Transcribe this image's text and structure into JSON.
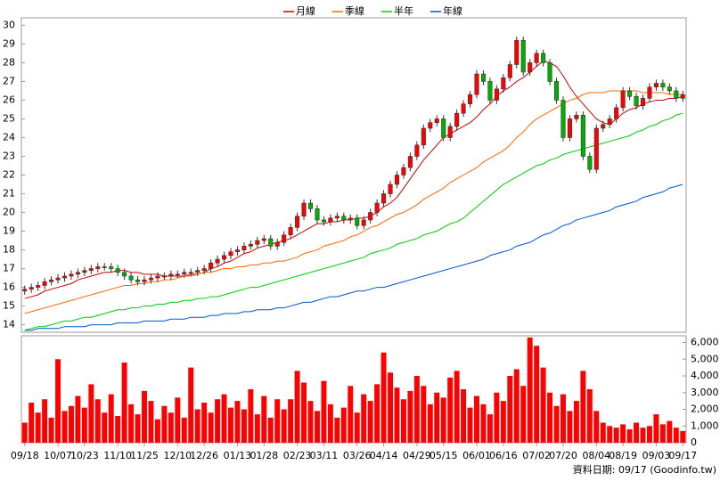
{
  "chart_data": {
    "type": "candlestick",
    "categories": [
      "09/18",
      null,
      null,
      null,
      null,
      "10/07",
      null,
      null,
      null,
      "10/23",
      null,
      null,
      null,
      null,
      "11/10",
      null,
      null,
      null,
      "11/25",
      null,
      null,
      null,
      null,
      "12/10",
      null,
      null,
      null,
      "12/26",
      null,
      null,
      null,
      null,
      "01/13",
      null,
      null,
      null,
      "01/28",
      null,
      null,
      null,
      null,
      "02/23",
      null,
      null,
      null,
      "03/11",
      null,
      null,
      null,
      null,
      "03/26",
      null,
      null,
      null,
      "04/14",
      null,
      null,
      null,
      null,
      "04/29",
      null,
      null,
      null,
      "05/15",
      null,
      null,
      null,
      null,
      "06/01",
      null,
      null,
      null,
      "06/16",
      null,
      null,
      null,
      null,
      "07/02",
      null,
      null,
      null,
      "07/20",
      null,
      null,
      null,
      null,
      "08/04",
      null,
      null,
      null,
      "08/19",
      null,
      null,
      null,
      null,
      "09/03",
      null,
      null,
      null,
      "09/17"
    ],
    "open": [
      15.8,
      15.9,
      16.0,
      16.1,
      16.3,
      16.4,
      16.5,
      16.6,
      16.7,
      16.8,
      16.9,
      17.0,
      17.1,
      17.1,
      17.0,
      16.8,
      16.6,
      16.4,
      16.3,
      16.4,
      16.5,
      16.6,
      16.6,
      16.7,
      16.7,
      16.8,
      16.8,
      16.9,
      17.0,
      17.3,
      17.5,
      17.7,
      17.9,
      18.0,
      18.2,
      18.3,
      18.5,
      18.6,
      18.2,
      18.4,
      18.8,
      19.2,
      19.8,
      20.5,
      20.2,
      19.6,
      19.5,
      19.7,
      19.8,
      19.6,
      19.7,
      19.3,
      19.6,
      20.0,
      20.5,
      21.0,
      21.5,
      22.0,
      22.4,
      23.0,
      23.6,
      24.5,
      24.8,
      25.0,
      24.0,
      24.6,
      25.3,
      25.8,
      26.3,
      27.4,
      27.0,
      26.0,
      26.6,
      27.2,
      27.9,
      29.2,
      27.5,
      28.0,
      28.5,
      28.0,
      27.0,
      26.0,
      24.0,
      25.0,
      25.2,
      23.0,
      22.3,
      24.5,
      24.7,
      25.0,
      25.6,
      26.5,
      26.2,
      25.7,
      26.1,
      26.7,
      26.9,
      26.7,
      26.5,
      26.1
    ],
    "high": [
      16.1,
      16.2,
      16.3,
      16.5,
      16.6,
      16.7,
      16.8,
      16.9,
      17.0,
      17.1,
      17.2,
      17.3,
      17.3,
      17.3,
      17.2,
      17.0,
      16.8,
      16.6,
      16.6,
      16.7,
      16.8,
      16.8,
      16.9,
      16.9,
      17.0,
      17.0,
      17.1,
      17.2,
      17.5,
      17.7,
      17.9,
      18.1,
      18.2,
      18.4,
      18.5,
      18.7,
      18.8,
      18.8,
      18.6,
      19.0,
      19.4,
      20.0,
      20.7,
      20.7,
      20.4,
      19.8,
      19.9,
      20.0,
      20.0,
      19.9,
      19.9,
      19.8,
      20.2,
      20.7,
      21.2,
      21.7,
      22.2,
      22.6,
      23.2,
      23.8,
      24.7,
      25.0,
      25.2,
      25.2,
      24.8,
      25.5,
      26.0,
      26.5,
      27.6,
      27.6,
      27.2,
      26.8,
      27.4,
      28.1,
      29.4,
      29.4,
      28.2,
      28.7,
      28.7,
      28.2,
      27.2,
      26.2,
      25.2,
      25.4,
      25.4,
      23.2,
      24.7,
      24.9,
      25.2,
      25.8,
      26.7,
      26.7,
      26.4,
      26.3,
      26.9,
      27.1,
      27.1,
      26.9,
      26.7,
      26.5
    ],
    "low": [
      15.6,
      15.7,
      15.8,
      15.9,
      16.1,
      16.2,
      16.3,
      16.4,
      16.5,
      16.6,
      16.7,
      16.8,
      16.9,
      16.8,
      16.6,
      16.4,
      16.2,
      16.1,
      16.1,
      16.2,
      16.3,
      16.4,
      16.4,
      16.5,
      16.5,
      16.6,
      16.6,
      16.7,
      16.8,
      17.1,
      17.3,
      17.5,
      17.7,
      17.8,
      18.0,
      18.1,
      18.3,
      18.0,
      18.0,
      18.2,
      18.6,
      19.0,
      19.6,
      20.0,
      19.4,
      19.3,
      19.3,
      19.5,
      19.4,
      19.4,
      19.1,
      19.1,
      19.4,
      19.8,
      20.3,
      20.8,
      21.3,
      21.8,
      22.2,
      22.8,
      23.4,
      24.3,
      24.6,
      23.8,
      23.8,
      24.4,
      25.1,
      25.6,
      26.1,
      26.8,
      25.8,
      25.8,
      26.4,
      27.0,
      27.7,
      27.3,
      27.3,
      27.8,
      27.8,
      26.8,
      25.8,
      23.8,
      23.8,
      24.8,
      22.8,
      22.1,
      22.1,
      24.3,
      24.5,
      24.8,
      25.4,
      26.0,
      25.5,
      25.5,
      25.9,
      26.5,
      26.5,
      26.3,
      25.9,
      25.9
    ],
    "close": [
      15.9,
      16.0,
      16.1,
      16.3,
      16.4,
      16.5,
      16.6,
      16.7,
      16.8,
      16.9,
      17.0,
      17.1,
      17.1,
      17.0,
      16.8,
      16.6,
      16.4,
      16.3,
      16.4,
      16.5,
      16.6,
      16.6,
      16.7,
      16.7,
      16.8,
      16.8,
      16.9,
      17.0,
      17.3,
      17.5,
      17.7,
      17.9,
      18.0,
      18.2,
      18.3,
      18.5,
      18.6,
      18.2,
      18.4,
      18.8,
      19.2,
      19.8,
      20.5,
      20.2,
      19.6,
      19.5,
      19.7,
      19.8,
      19.6,
      19.7,
      19.3,
      19.6,
      20.0,
      20.5,
      21.0,
      21.5,
      22.0,
      22.4,
      23.0,
      23.6,
      24.5,
      24.8,
      25.0,
      24.0,
      24.6,
      25.3,
      25.8,
      26.3,
      27.4,
      27.0,
      26.0,
      26.6,
      27.2,
      27.9,
      29.2,
      27.5,
      28.0,
      28.5,
      28.0,
      27.0,
      26.0,
      24.0,
      25.0,
      25.2,
      23.0,
      22.3,
      24.5,
      24.7,
      25.0,
      25.6,
      26.5,
      26.2,
      25.7,
      26.1,
      26.7,
      26.9,
      26.7,
      26.5,
      26.1,
      26.3
    ],
    "up_color": "#ff0000",
    "down_color": "#00b000",
    "series": [
      {
        "name": "月線",
        "color": "#cc0000",
        "values": [
          15.4,
          15.5,
          15.6,
          15.8,
          15.9,
          16.0,
          16.1,
          16.2,
          16.4,
          16.5,
          16.6,
          16.7,
          16.8,
          16.8,
          16.9,
          16.9,
          16.8,
          16.8,
          16.7,
          16.7,
          16.7,
          16.6,
          16.6,
          16.6,
          16.6,
          16.7,
          16.7,
          16.8,
          17.0,
          17.1,
          17.3,
          17.4,
          17.6,
          17.8,
          17.9,
          18.1,
          18.2,
          18.3,
          18.4,
          18.5,
          18.6,
          18.8,
          19.0,
          19.2,
          19.4,
          19.4,
          19.5,
          19.5,
          19.6,
          19.6,
          19.7,
          19.7,
          19.8,
          20.0,
          20.3,
          20.5,
          20.8,
          21.3,
          21.8,
          22.3,
          22.8,
          23.2,
          23.6,
          24.0,
          24.2,
          24.4,
          24.6,
          24.8,
          25.1,
          25.5,
          25.8,
          26.2,
          26.5,
          26.7,
          27.0,
          27.2,
          27.5,
          27.8,
          28.1,
          28.0,
          27.8,
          27.3,
          26.7,
          26.2,
          25.8,
          25.4,
          25.0,
          24.8,
          24.7,
          25.0,
          25.3,
          25.5,
          25.6,
          25.8,
          25.9,
          26.0,
          26.0,
          26.1,
          26.1,
          26.2
        ]
      },
      {
        "name": "季線",
        "color": "#ff6600",
        "values": [
          14.6,
          14.7,
          14.8,
          14.9,
          15.0,
          15.1,
          15.2,
          15.3,
          15.4,
          15.5,
          15.6,
          15.7,
          15.8,
          15.9,
          16.0,
          16.1,
          16.1,
          16.2,
          16.2,
          16.3,
          16.3,
          16.4,
          16.4,
          16.5,
          16.6,
          16.6,
          16.7,
          16.8,
          16.8,
          16.9,
          17.0,
          17.0,
          17.1,
          17.1,
          17.2,
          17.2,
          17.3,
          17.3,
          17.4,
          17.4,
          17.5,
          17.6,
          17.8,
          17.9,
          18.0,
          18.2,
          18.3,
          18.4,
          18.5,
          18.7,
          18.8,
          19.0,
          19.2,
          19.3,
          19.5,
          19.7,
          19.9,
          20.0,
          20.2,
          20.4,
          20.7,
          20.9,
          21.1,
          21.3,
          21.6,
          21.8,
          22.0,
          22.2,
          22.4,
          22.7,
          22.9,
          23.1,
          23.3,
          23.6,
          24.0,
          24.3,
          24.7,
          25.0,
          25.2,
          25.4,
          25.6,
          25.8,
          26.0,
          26.1,
          26.3,
          26.4,
          26.4,
          26.4,
          26.5,
          26.5,
          26.5,
          26.5,
          26.5,
          26.4,
          26.4,
          26.4,
          26.4,
          26.3,
          26.3,
          26.3
        ]
      },
      {
        "name": "半年",
        "color": "#00cc00",
        "values": [
          13.7,
          13.8,
          13.9,
          13.9,
          14.0,
          14.1,
          14.2,
          14.2,
          14.3,
          14.4,
          14.4,
          14.5,
          14.6,
          14.7,
          14.8,
          14.8,
          14.9,
          14.9,
          15.0,
          15.0,
          15.1,
          15.1,
          15.2,
          15.2,
          15.3,
          15.3,
          15.4,
          15.4,
          15.5,
          15.5,
          15.6,
          15.7,
          15.8,
          15.9,
          16.0,
          16.0,
          16.1,
          16.2,
          16.3,
          16.4,
          16.5,
          16.6,
          16.7,
          16.8,
          16.9,
          17.0,
          17.1,
          17.2,
          17.3,
          17.4,
          17.5,
          17.6,
          17.8,
          17.9,
          18.0,
          18.1,
          18.3,
          18.4,
          18.5,
          18.6,
          18.8,
          18.9,
          19.0,
          19.2,
          19.4,
          19.5,
          19.7,
          20.0,
          20.3,
          20.6,
          20.9,
          21.2,
          21.5,
          21.7,
          21.9,
          22.1,
          22.3,
          22.5,
          22.6,
          22.8,
          22.9,
          23.1,
          23.2,
          23.3,
          23.4,
          23.5,
          23.6,
          23.7,
          23.8,
          23.9,
          24.0,
          24.1,
          24.3,
          24.4,
          24.6,
          24.7,
          24.9,
          25.0,
          25.2,
          25.3
        ]
      },
      {
        "name": "年線",
        "color": "#0055cc",
        "values": [
          13.7,
          13.7,
          13.8,
          13.8,
          13.8,
          13.8,
          13.9,
          13.9,
          13.9,
          13.9,
          14.0,
          14.0,
          14.0,
          14.0,
          14.1,
          14.1,
          14.1,
          14.1,
          14.2,
          14.2,
          14.2,
          14.2,
          14.3,
          14.3,
          14.3,
          14.4,
          14.4,
          14.4,
          14.5,
          14.5,
          14.6,
          14.6,
          14.6,
          14.7,
          14.7,
          14.8,
          14.8,
          14.8,
          14.9,
          14.9,
          15.0,
          15.1,
          15.2,
          15.2,
          15.3,
          15.4,
          15.5,
          15.5,
          15.6,
          15.7,
          15.8,
          15.8,
          15.9,
          16.0,
          16.0,
          16.1,
          16.2,
          16.3,
          16.4,
          16.5,
          16.6,
          16.7,
          16.8,
          16.9,
          17.0,
          17.1,
          17.2,
          17.3,
          17.4,
          17.5,
          17.7,
          17.8,
          17.9,
          18.0,
          18.2,
          18.3,
          18.4,
          18.6,
          18.8,
          18.9,
          19.1,
          19.3,
          19.4,
          19.6,
          19.7,
          19.8,
          19.9,
          20.0,
          20.1,
          20.3,
          20.4,
          20.5,
          20.6,
          20.8,
          20.9,
          21.0,
          21.1,
          21.3,
          21.4,
          21.5
        ]
      }
    ],
    "ylim": [
      13.6,
      30.4
    ],
    "yticks": [
      14,
      15,
      16,
      17,
      18,
      19,
      20,
      21,
      22,
      23,
      24,
      25,
      26,
      27,
      28,
      29,
      30
    ],
    "volume": {
      "color": "#ff0000",
      "ylim": [
        0,
        6400
      ],
      "yticks": [
        0,
        {
          "value": 1000,
          "label": "1,000"
        },
        {
          "value": 2000,
          "label": "2,000"
        },
        {
          "value": 3000,
          "label": "3,000"
        },
        {
          "value": 4000,
          "label": "4,000"
        },
        {
          "value": 5000,
          "label": "5,000"
        },
        {
          "value": 6000,
          "label": "6,000"
        }
      ],
      "values": [
        1200,
        2400,
        1800,
        2600,
        1500,
        5000,
        1900,
        2200,
        2800,
        2100,
        3500,
        2600,
        1800,
        2900,
        1600,
        4800,
        2300,
        1700,
        3100,
        2500,
        1400,
        2200,
        1800,
        2700,
        1500,
        4500,
        2000,
        2400,
        1800,
        2600,
        2900,
        2100,
        2500,
        2000,
        3200,
        1700,
        2800,
        1500,
        2600,
        2000,
        2600,
        4300,
        3600,
        2500,
        1900,
        3700,
        2300,
        1500,
        2100,
        3400,
        1800,
        2900,
        2500,
        3500,
        5400,
        4200,
        3300,
        2600,
        3100,
        4000,
        3400,
        2300,
        3000,
        2700,
        3900,
        4300,
        3200,
        2100,
        2800,
        2300,
        1700,
        3000,
        2500,
        4000,
        4400,
        3400,
        6300,
        5800,
        4500,
        3000,
        2200,
        2900,
        1900,
        2500,
        4300,
        3200,
        1900,
        1200,
        1000,
        900,
        1100,
        800,
        1200,
        900,
        1000,
        1700,
        1100,
        1300,
        900,
        700
      ]
    },
    "source": "資料日期: 09/17 (Goodinfo.tw)"
  }
}
